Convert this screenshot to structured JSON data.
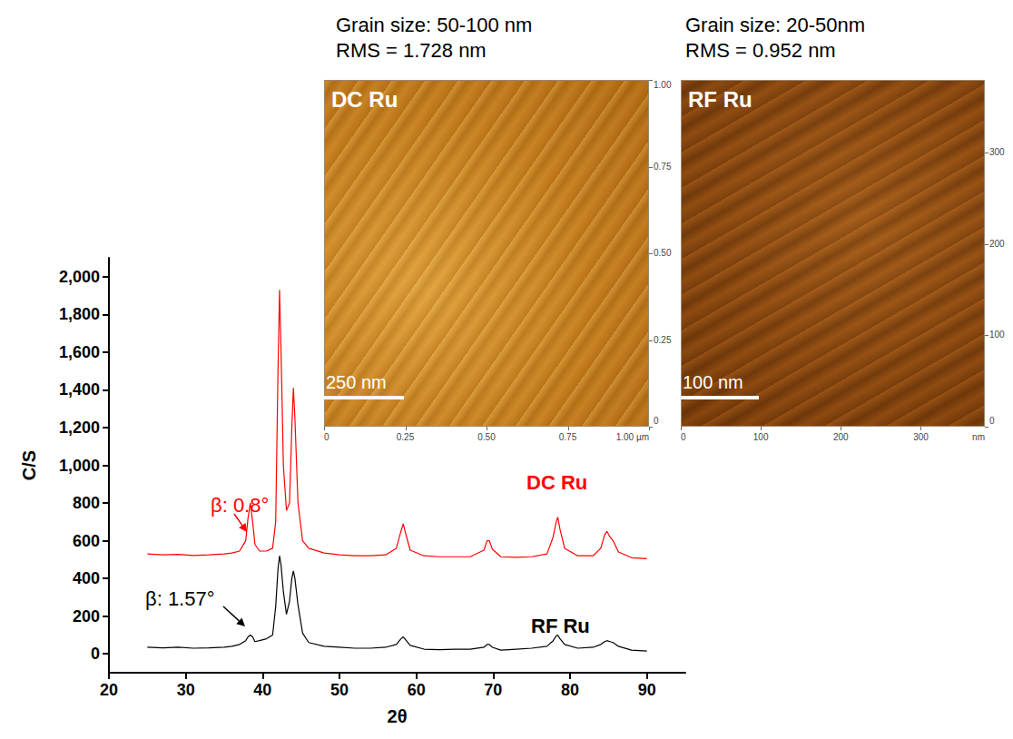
{
  "chart_data": {
    "type": "line",
    "xlabel": "2θ",
    "ylabel": "C/S",
    "xlim": [
      20,
      95
    ],
    "xticks": [
      20,
      30,
      40,
      50,
      60,
      70,
      80,
      90
    ],
    "ylim": [
      -100,
      2100
    ],
    "yticks": [
      0,
      200,
      400,
      600,
      800,
      1000,
      1200,
      1400,
      1600,
      1800,
      2000
    ],
    "grid": false,
    "x": [
      25,
      27,
      29,
      31,
      33,
      35,
      36,
      37,
      37.8,
      38.1,
      38.4,
      38.7,
      39,
      39.6,
      40.5,
      41.3,
      41.7,
      42.0,
      42.2,
      42.4,
      42.7,
      43.1,
      43.5,
      43.8,
      44.0,
      44.2,
      44.6,
      45.2,
      46,
      48,
      50,
      52,
      54,
      56,
      57.4,
      58,
      58.3,
      58.6,
      59.2,
      61,
      63,
      65,
      67,
      68.8,
      69.2,
      69.5,
      69.9,
      71,
      73,
      75,
      77,
      77.8,
      78.2,
      78.4,
      78.7,
      79.3,
      81,
      83,
      84,
      84.5,
      84.8,
      85.2,
      85.6,
      86.3,
      88,
      90
    ],
    "series": [
      {
        "name": "DC Ru",
        "color": "#ff0000",
        "values": [
          530,
          525,
          528,
          522,
          525,
          530,
          535,
          545,
          600,
          720,
          800,
          700,
          580,
          545,
          545,
          560,
          700,
          1500,
          1930,
          1600,
          1000,
          760,
          800,
          1200,
          1410,
          1250,
          800,
          600,
          560,
          535,
          525,
          520,
          520,
          525,
          560,
          650,
          690,
          640,
          550,
          520,
          515,
          515,
          515,
          550,
          600,
          600,
          555,
          515,
          512,
          515,
          530,
          620,
          700,
          725,
          660,
          560,
          520,
          520,
          560,
          630,
          650,
          620,
          600,
          540,
          510,
          505
        ]
      },
      {
        "name": "RF Ru",
        "color": "#000000",
        "values": [
          35,
          32,
          35,
          30,
          32,
          35,
          40,
          50,
          70,
          90,
          100,
          90,
          65,
          70,
          80,
          100,
          250,
          450,
          520,
          470,
          330,
          210,
          280,
          400,
          440,
          400,
          260,
          110,
          60,
          40,
          35,
          30,
          30,
          35,
          50,
          80,
          90,
          75,
          45,
          25,
          22,
          25,
          25,
          35,
          50,
          50,
          35,
          20,
          25,
          30,
          40,
          70,
          95,
          100,
          80,
          50,
          30,
          35,
          50,
          65,
          70,
          65,
          60,
          40,
          20,
          15
        ]
      }
    ],
    "annotations": [
      {
        "text": "β: 0.8°",
        "color": "#ff0000"
      },
      {
        "text": "β: 1.57°",
        "color": "#000000"
      }
    ]
  },
  "afm_panels": [
    {
      "caption": [
        "Grain size: 50-100 nm",
        "RMS = 1.728 nm"
      ],
      "label": "DC Ru",
      "scale_bar": {
        "label": "250 nm",
        "value": 0.25
      },
      "xlim": [
        0,
        1
      ],
      "xticks": [
        0,
        0.25,
        {
          "value": 0.5,
          "label": "0.50"
        },
        0.75,
        {
          "value": 1,
          "label": "1.00 µm"
        }
      ],
      "ylim": [
        0,
        1
      ],
      "yticks": [
        0,
        0.25,
        {
          "value": 0.5,
          "label": "0.50"
        },
        0.75,
        {
          "value": 1,
          "label": "1.00"
        }
      ]
    },
    {
      "caption": [
        "Grain size: 20-50nm",
        "RMS = 0.952 nm"
      ],
      "label": "RF Ru",
      "scale_bar": {
        "label": "100 nm",
        "value": 100
      },
      "xlim": [
        0,
        380
      ],
      "xticks": [
        0,
        100,
        200,
        300
      ],
      "x_unit": "nm",
      "ylim": [
        0,
        380
      ],
      "yticks": [
        0,
        100,
        200,
        300
      ]
    }
  ]
}
